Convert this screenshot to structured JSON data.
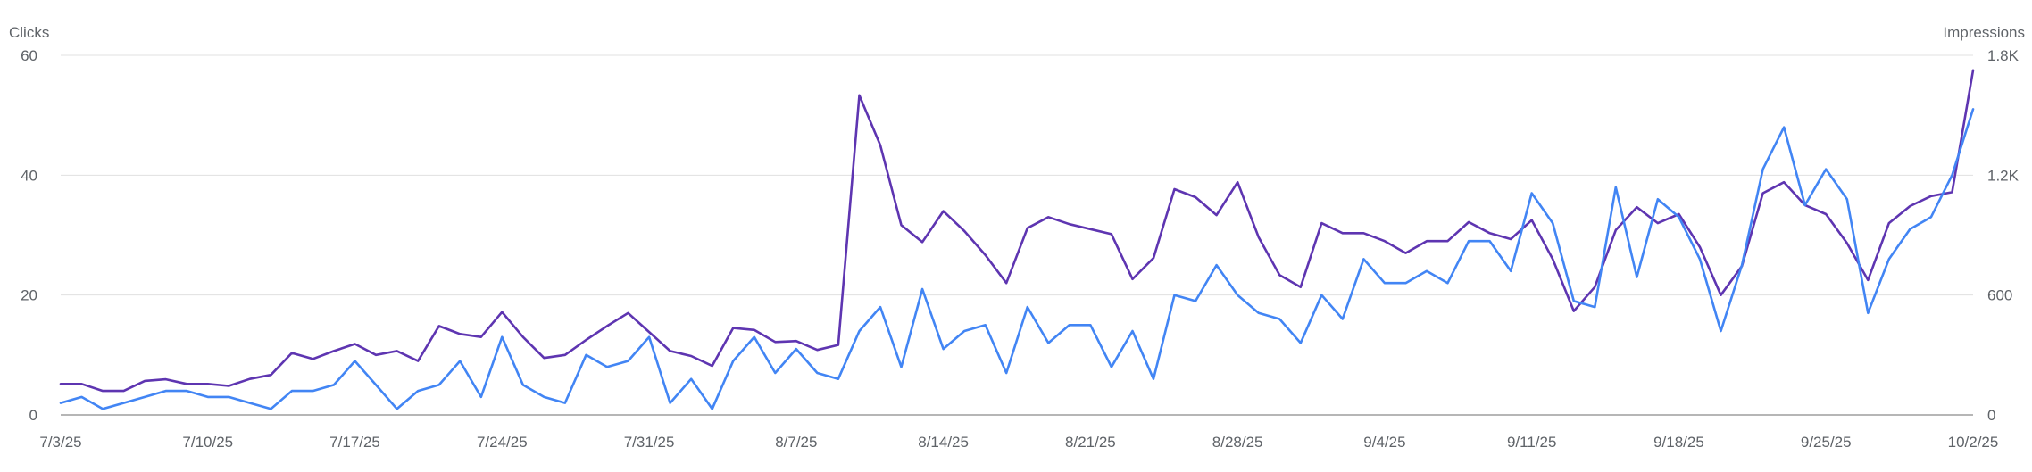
{
  "chart_data": {
    "type": "line",
    "left_axis_title": "Clicks",
    "right_axis_title": "Impressions",
    "left_axis": {
      "min": 0,
      "max": 60,
      "ticks": [
        "0",
        "20",
        "40",
        "60"
      ],
      "tick_values": [
        0,
        20,
        40,
        60
      ]
    },
    "right_axis": {
      "min": 0,
      "max": 1800,
      "ticks": [
        "0",
        "600",
        "1.2K",
        "1.8K"
      ],
      "tick_values": [
        0,
        600,
        1200,
        1800
      ]
    },
    "x_labels": [
      "7/3/25",
      "7/10/25",
      "7/17/25",
      "7/24/25",
      "7/31/25",
      "8/7/25",
      "8/14/25",
      "8/21/25",
      "8/28/25",
      "9/4/25",
      "9/11/25",
      "9/18/25",
      "9/25/25",
      "10/2/25"
    ],
    "grid": true,
    "legend": "none",
    "colors": {
      "clicks": "#4285f4",
      "impressions": "#5e35b1",
      "grid": "#e0e0e0",
      "baseline": "#9e9e9e",
      "text": "#5f6368"
    },
    "series": [
      {
        "axis": "left",
        "values": [
          2,
          3,
          1,
          2,
          3,
          4,
          4,
          3,
          3,
          2,
          1,
          4,
          4,
          5,
          9,
          5,
          1,
          4,
          5,
          9,
          3,
          13,
          5,
          3,
          2,
          10,
          8,
          9,
          13,
          2,
          6,
          1,
          9,
          13,
          7,
          11,
          7,
          6,
          14,
          18,
          8,
          21,
          11,
          14,
          15,
          7,
          18,
          12,
          15,
          15,
          8,
          14,
          6,
          20,
          19,
          25,
          20,
          17,
          16,
          12,
          20,
          16,
          26,
          22,
          22,
          24,
          22,
          29,
          29,
          24,
          37,
          32,
          19,
          18,
          38,
          23,
          36,
          33,
          26,
          14,
          25,
          41,
          48,
          35,
          41,
          36,
          17,
          26,
          31,
          33,
          40,
          51
        ]
      },
      {
        "axis": "right",
        "values": [
          155,
          155,
          120,
          120,
          170,
          178,
          155,
          155,
          145,
          180,
          200,
          310,
          280,
          320,
          355,
          300,
          320,
          270,
          445,
          405,
          390,
          515,
          390,
          285,
          300,
          375,
          445,
          510,
          415,
          320,
          295,
          245,
          435,
          425,
          365,
          370,
          325,
          350,
          1600,
          1350,
          950,
          865,
          1020,
          920,
          800,
          660,
          935,
          990,
          955,
          930,
          905,
          680,
          785,
          1130,
          1090,
          1000,
          1165,
          890,
          700,
          640,
          960,
          910,
          910,
          870,
          810,
          870,
          870,
          965,
          910,
          880,
          975,
          780,
          520,
          640,
          925,
          1040,
          960,
          1005,
          840,
          600,
          745,
          1110,
          1165,
          1050,
          1005,
          860,
          675,
          960,
          1045,
          1095,
          1115,
          1725
        ]
      }
    ]
  }
}
